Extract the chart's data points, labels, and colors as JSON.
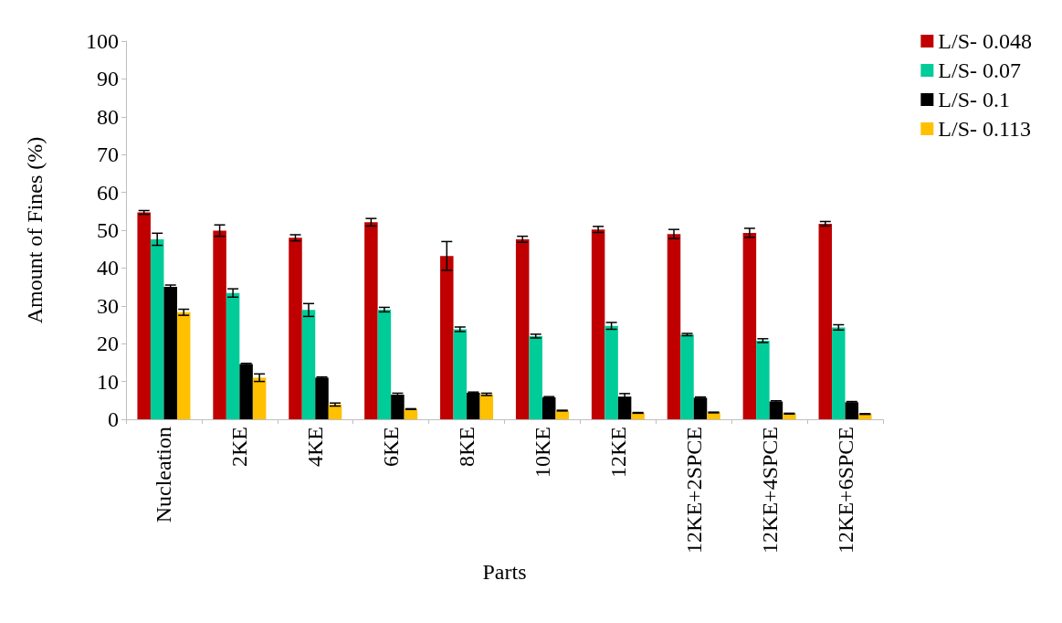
{
  "chart_data": {
    "type": "bar",
    "xlabel": "Parts",
    "ylabel": "Amount of Fines (%)",
    "categories": [
      "Nucleation",
      "2KE",
      "4KE",
      "6KE",
      "8KE",
      "10KE",
      "12KE",
      "12KE+2SPCE",
      "12KE+4SPCE",
      "12KE+6SPCE"
    ],
    "series": [
      {
        "name": "L/S- 0.048",
        "color": "#c00000",
        "values": [
          54.7,
          49.9,
          48.0,
          52.1,
          43.2,
          47.6,
          50.2,
          49.0,
          49.3,
          51.7
        ],
        "errors": [
          0.5,
          1.5,
          0.8,
          1.0,
          3.8,
          0.8,
          0.8,
          1.2,
          1.2,
          0.6
        ]
      },
      {
        "name": "L/S- 0.07",
        "color": "#00cc99",
        "values": [
          47.6,
          33.4,
          28.9,
          29.0,
          23.8,
          22.0,
          24.7,
          22.4,
          20.8,
          24.3
        ],
        "errors": [
          1.6,
          1.1,
          1.7,
          0.6,
          0.6,
          0.5,
          0.9,
          0.3,
          0.5,
          0.7
        ]
      },
      {
        "name": "L/S- 0.1",
        "color": "#000000",
        "values": [
          35.0,
          14.6,
          11.0,
          6.5,
          7.0,
          5.8,
          6.0,
          5.7,
          4.7,
          4.5
        ],
        "errors": [
          0.5,
          0.2,
          0.2,
          0.4,
          0.2,
          0.2,
          0.8,
          0.2,
          0.2,
          0.2
        ]
      },
      {
        "name": "L/S- 0.113",
        "color": "#ffc000",
        "values": [
          28.3,
          11.0,
          3.9,
          2.7,
          6.6,
          2.3,
          1.7,
          1.8,
          1.5,
          1.4
        ],
        "errors": [
          0.8,
          1.0,
          0.4,
          0.1,
          0.3,
          0.1,
          0.1,
          0.1,
          0.1,
          0.1
        ]
      }
    ],
    "ylim": [
      0,
      100
    ],
    "yticks": [
      0,
      10,
      20,
      30,
      40,
      50,
      60,
      70,
      80,
      90,
      100
    ],
    "grid": false,
    "legend": "top right"
  }
}
